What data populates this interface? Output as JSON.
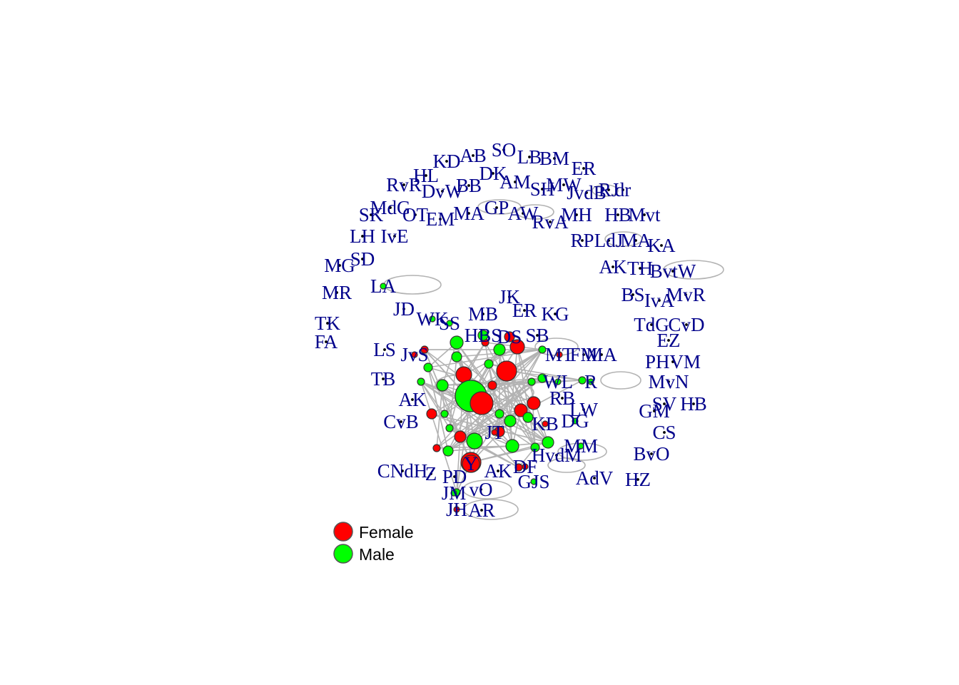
{
  "colors": {
    "female": "#ff0000",
    "male": "#00ff00",
    "none": "#000000",
    "edge": "#b3b3b3",
    "label": "#00008B"
  },
  "legend": {
    "items": [
      {
        "label": "Female",
        "color": "#ff0000"
      },
      {
        "label": "Male",
        "color": "#00ff00"
      }
    ]
  },
  "network": {
    "nodes": [
      {
        "label": "SO",
        "sex": "none",
        "size": 1
      },
      {
        "label": "AB",
        "sex": "none",
        "size": 1
      },
      {
        "label": "LB",
        "sex": "none",
        "size": 1
      },
      {
        "label": "BM",
        "sex": "none",
        "size": 1
      },
      {
        "label": "KD",
        "sex": "none",
        "size": 1
      },
      {
        "label": "ER",
        "sex": "none",
        "size": 1
      },
      {
        "label": "HL",
        "sex": "none",
        "size": 1
      },
      {
        "label": "DK",
        "sex": "none",
        "size": 1
      },
      {
        "label": "AM",
        "sex": "none",
        "size": 1
      },
      {
        "label": "RvR",
        "sex": "none",
        "size": 1
      },
      {
        "label": "DvW",
        "sex": "none",
        "size": 1
      },
      {
        "label": "BB",
        "sex": "none",
        "size": 1
      },
      {
        "label": "MW",
        "sex": "none",
        "size": 1
      },
      {
        "label": "SH",
        "sex": "none",
        "size": 1
      },
      {
        "label": "JvdB",
        "sex": "none",
        "size": 1
      },
      {
        "label": "RJ",
        "sex": "none",
        "size": 1
      },
      {
        "label": "dr",
        "sex": "none",
        "size": 1
      },
      {
        "label": "MdG",
        "sex": "none",
        "size": 1
      },
      {
        "label": "GP",
        "sex": "none",
        "size": 1
      },
      {
        "label": "SK",
        "sex": "none",
        "size": 1
      },
      {
        "label": "OT",
        "sex": "none",
        "size": 1
      },
      {
        "label": "EM",
        "sex": "none",
        "size": 1
      },
      {
        "label": "MA",
        "sex": "none",
        "size": 1
      },
      {
        "label": "AW",
        "sex": "none",
        "size": 1
      },
      {
        "label": "MH",
        "sex": "none",
        "size": 1
      },
      {
        "label": "HB",
        "sex": "none",
        "size": 1
      },
      {
        "label": "Mvt",
        "sex": "none",
        "size": 1
      },
      {
        "label": "RvA",
        "sex": "none",
        "size": 1
      },
      {
        "label": "LH",
        "sex": "none",
        "size": 1
      },
      {
        "label": "IvE",
        "sex": "none",
        "size": 1
      },
      {
        "label": "RP",
        "sex": "none",
        "size": 1
      },
      {
        "label": "LdJ",
        "sex": "none",
        "size": 1
      },
      {
        "label": "MA",
        "sex": "none",
        "size": 1
      },
      {
        "label": "KA",
        "sex": "none",
        "size": 1
      },
      {
        "label": "SD",
        "sex": "none",
        "size": 1
      },
      {
        "label": "MG",
        "sex": "none",
        "size": 1
      },
      {
        "label": "AK",
        "sex": "none",
        "size": 1
      },
      {
        "label": "TH",
        "sex": "none",
        "size": 1
      },
      {
        "label": "BvtW",
        "sex": "none",
        "size": 1
      },
      {
        "label": "LA",
        "sex": "male",
        "size": 1
      },
      {
        "label": "MR",
        "sex": "none",
        "size": 1
      },
      {
        "label": "BS",
        "sex": "none",
        "size": 1
      },
      {
        "label": "IvA",
        "sex": "none",
        "size": 1
      },
      {
        "label": "MvR",
        "sex": "none",
        "size": 1
      },
      {
        "label": "JK",
        "sex": "none",
        "size": 1
      },
      {
        "label": "JD",
        "sex": "none",
        "size": 1
      },
      {
        "label": "ER",
        "sex": "none",
        "size": 1
      },
      {
        "label": "KG",
        "sex": "none",
        "size": 1
      },
      {
        "label": "WK",
        "sex": "male",
        "size": 1
      },
      {
        "label": "MB",
        "sex": "none",
        "size": 1
      },
      {
        "label": "SS",
        "sex": "male",
        "size": 1
      },
      {
        "label": "TK",
        "sex": "none",
        "size": 1
      },
      {
        "label": "TdG",
        "sex": "none",
        "size": 1
      },
      {
        "label": "CvD",
        "sex": "none",
        "size": 1
      },
      {
        "label": "FA",
        "sex": "none",
        "size": 1
      },
      {
        "label": "EZ",
        "sex": "none",
        "size": 1
      },
      {
        "label": "HBS",
        "sex": "male",
        "size": 2
      },
      {
        "label": "DS",
        "sex": "female",
        "size": 2
      },
      {
        "label": "SB",
        "sex": "none",
        "size": 1
      },
      {
        "label": "LS",
        "sex": "none",
        "size": 1
      },
      {
        "label": "JvS",
        "sex": "female",
        "size": 1
      },
      {
        "label": "MT",
        "sex": "female",
        "size": 1
      },
      {
        "label": "FM",
        "sex": "none",
        "size": 1
      },
      {
        "label": "MA",
        "sex": "none",
        "size": 1
      },
      {
        "label": "PHVM",
        "sex": "none",
        "size": 1
      },
      {
        "label": "TB",
        "sex": "none",
        "size": 1
      },
      {
        "label": "WL",
        "sex": "male",
        "size": 1
      },
      {
        "label": "R",
        "sex": "male",
        "size": 1
      },
      {
        "label": "MvN",
        "sex": "none",
        "size": 1
      },
      {
        "label": "AK",
        "sex": "none",
        "size": 1
      },
      {
        "label": "RB",
        "sex": "none",
        "size": 1
      },
      {
        "label": "SV",
        "sex": "none",
        "size": 1
      },
      {
        "label": "HB",
        "sex": "none",
        "size": 1
      },
      {
        "label": "GM",
        "sex": "none",
        "size": 1
      },
      {
        "label": "LW",
        "sex": "none",
        "size": 1
      },
      {
        "label": "CvB",
        "sex": "none",
        "size": 1
      },
      {
        "label": "DG",
        "sex": "male",
        "size": 1
      },
      {
        "label": "KB",
        "sex": "female",
        "size": 1
      },
      {
        "label": "CS",
        "sex": "none",
        "size": 1
      },
      {
        "label": "MM",
        "sex": "male",
        "size": 1
      },
      {
        "label": "BvO",
        "sex": "none",
        "size": 1
      },
      {
        "label": "CNdH",
        "sex": "none",
        "size": 1
      },
      {
        "label": "Z",
        "sex": "none",
        "size": 1
      },
      {
        "label": "PD",
        "sex": "none",
        "size": 1
      },
      {
        "label": "AK",
        "sex": "none",
        "size": 1
      },
      {
        "label": "DF",
        "sex": "female",
        "size": 1
      },
      {
        "label": "HvdM",
        "sex": "none",
        "size": 1
      },
      {
        "label": "AdV",
        "sex": "none",
        "size": 1
      },
      {
        "label": "HZ",
        "sex": "none",
        "size": 1
      },
      {
        "label": "GJS",
        "sex": "male",
        "size": 1
      },
      {
        "label": "JM",
        "sex": "male",
        "size": 1
      },
      {
        "label": "vO",
        "sex": "none",
        "size": 1
      },
      {
        "label": "JH",
        "sex": "female",
        "size": 1
      },
      {
        "label": "AR",
        "sex": "none",
        "size": 1
      },
      {
        "label": "Y",
        "sex": "female",
        "size": 3
      },
      {
        "label": "JT",
        "sex": "female",
        "size": 1
      }
    ]
  }
}
